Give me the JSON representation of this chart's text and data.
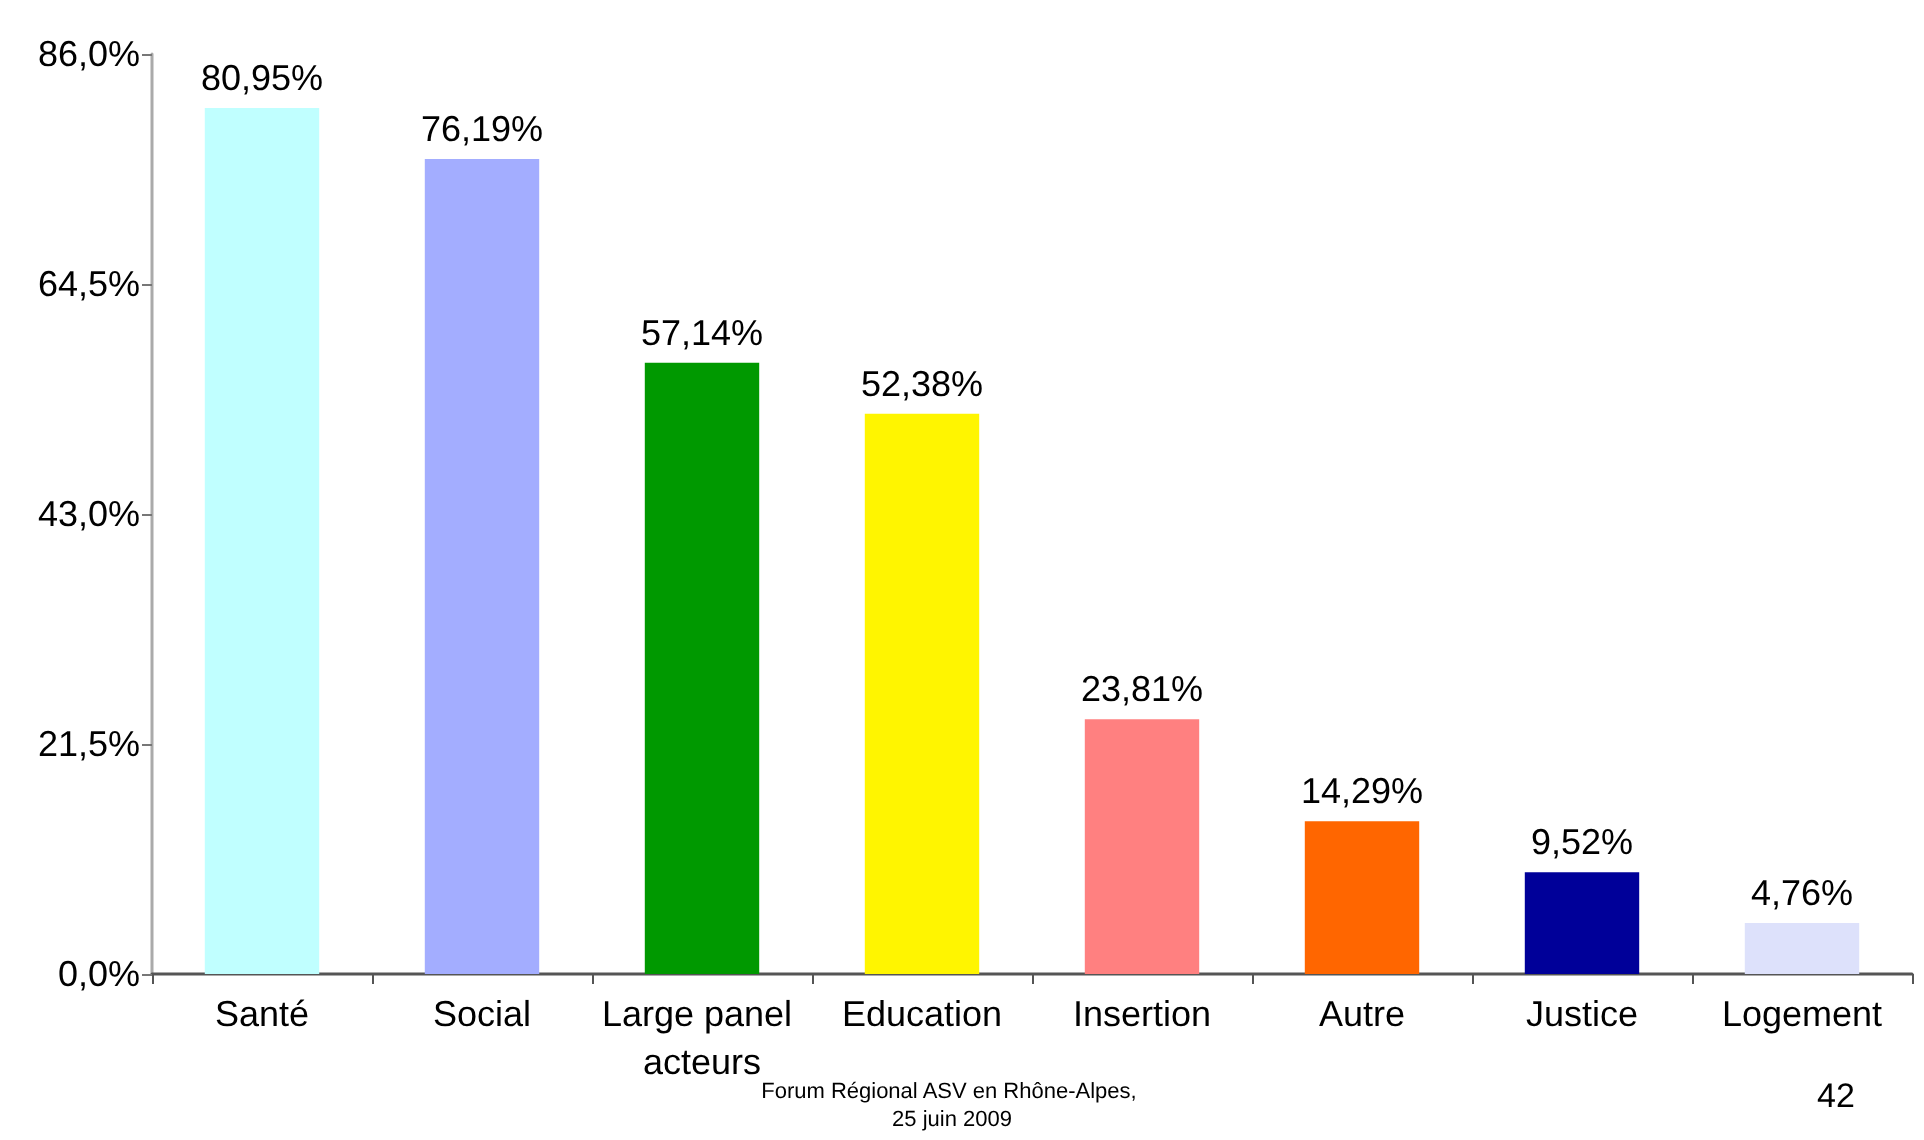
{
  "chart_data": {
    "type": "bar",
    "categories": [
      "Santé",
      "Social",
      "Large panel acteurs",
      "Education",
      "Insertion",
      "Autre",
      "Justice",
      "Logement"
    ],
    "values": [
      80.95,
      76.19,
      57.14,
      52.38,
      23.81,
      14.29,
      9.52,
      4.76
    ],
    "colors": [
      "#c0ffff",
      "#a3adff",
      "#009900",
      "#fff500",
      "#ff8080",
      "#ff6600",
      "#000099",
      "#dde1fb"
    ],
    "value_labels": [
      "80,95%",
      "76,19%",
      "57,14%",
      "52,38%",
      "23,81%",
      "14,29%",
      "9,52%",
      "4,76%"
    ],
    "ylim": [
      0,
      86
    ],
    "yticks": [
      {
        "value": 0,
        "label": "0,0%"
      },
      {
        "value": 21.5,
        "label": "21,5%"
      },
      {
        "value": 43,
        "label": "43,0%"
      },
      {
        "value": 64.5,
        "label": "64,5%"
      },
      {
        "value": 86,
        "label": "86,0%"
      }
    ],
    "grid": false,
    "annotations": [
      "Forum Régional ASV en Rhône-Alpes, 25 juin 2009",
      "42"
    ]
  }
}
